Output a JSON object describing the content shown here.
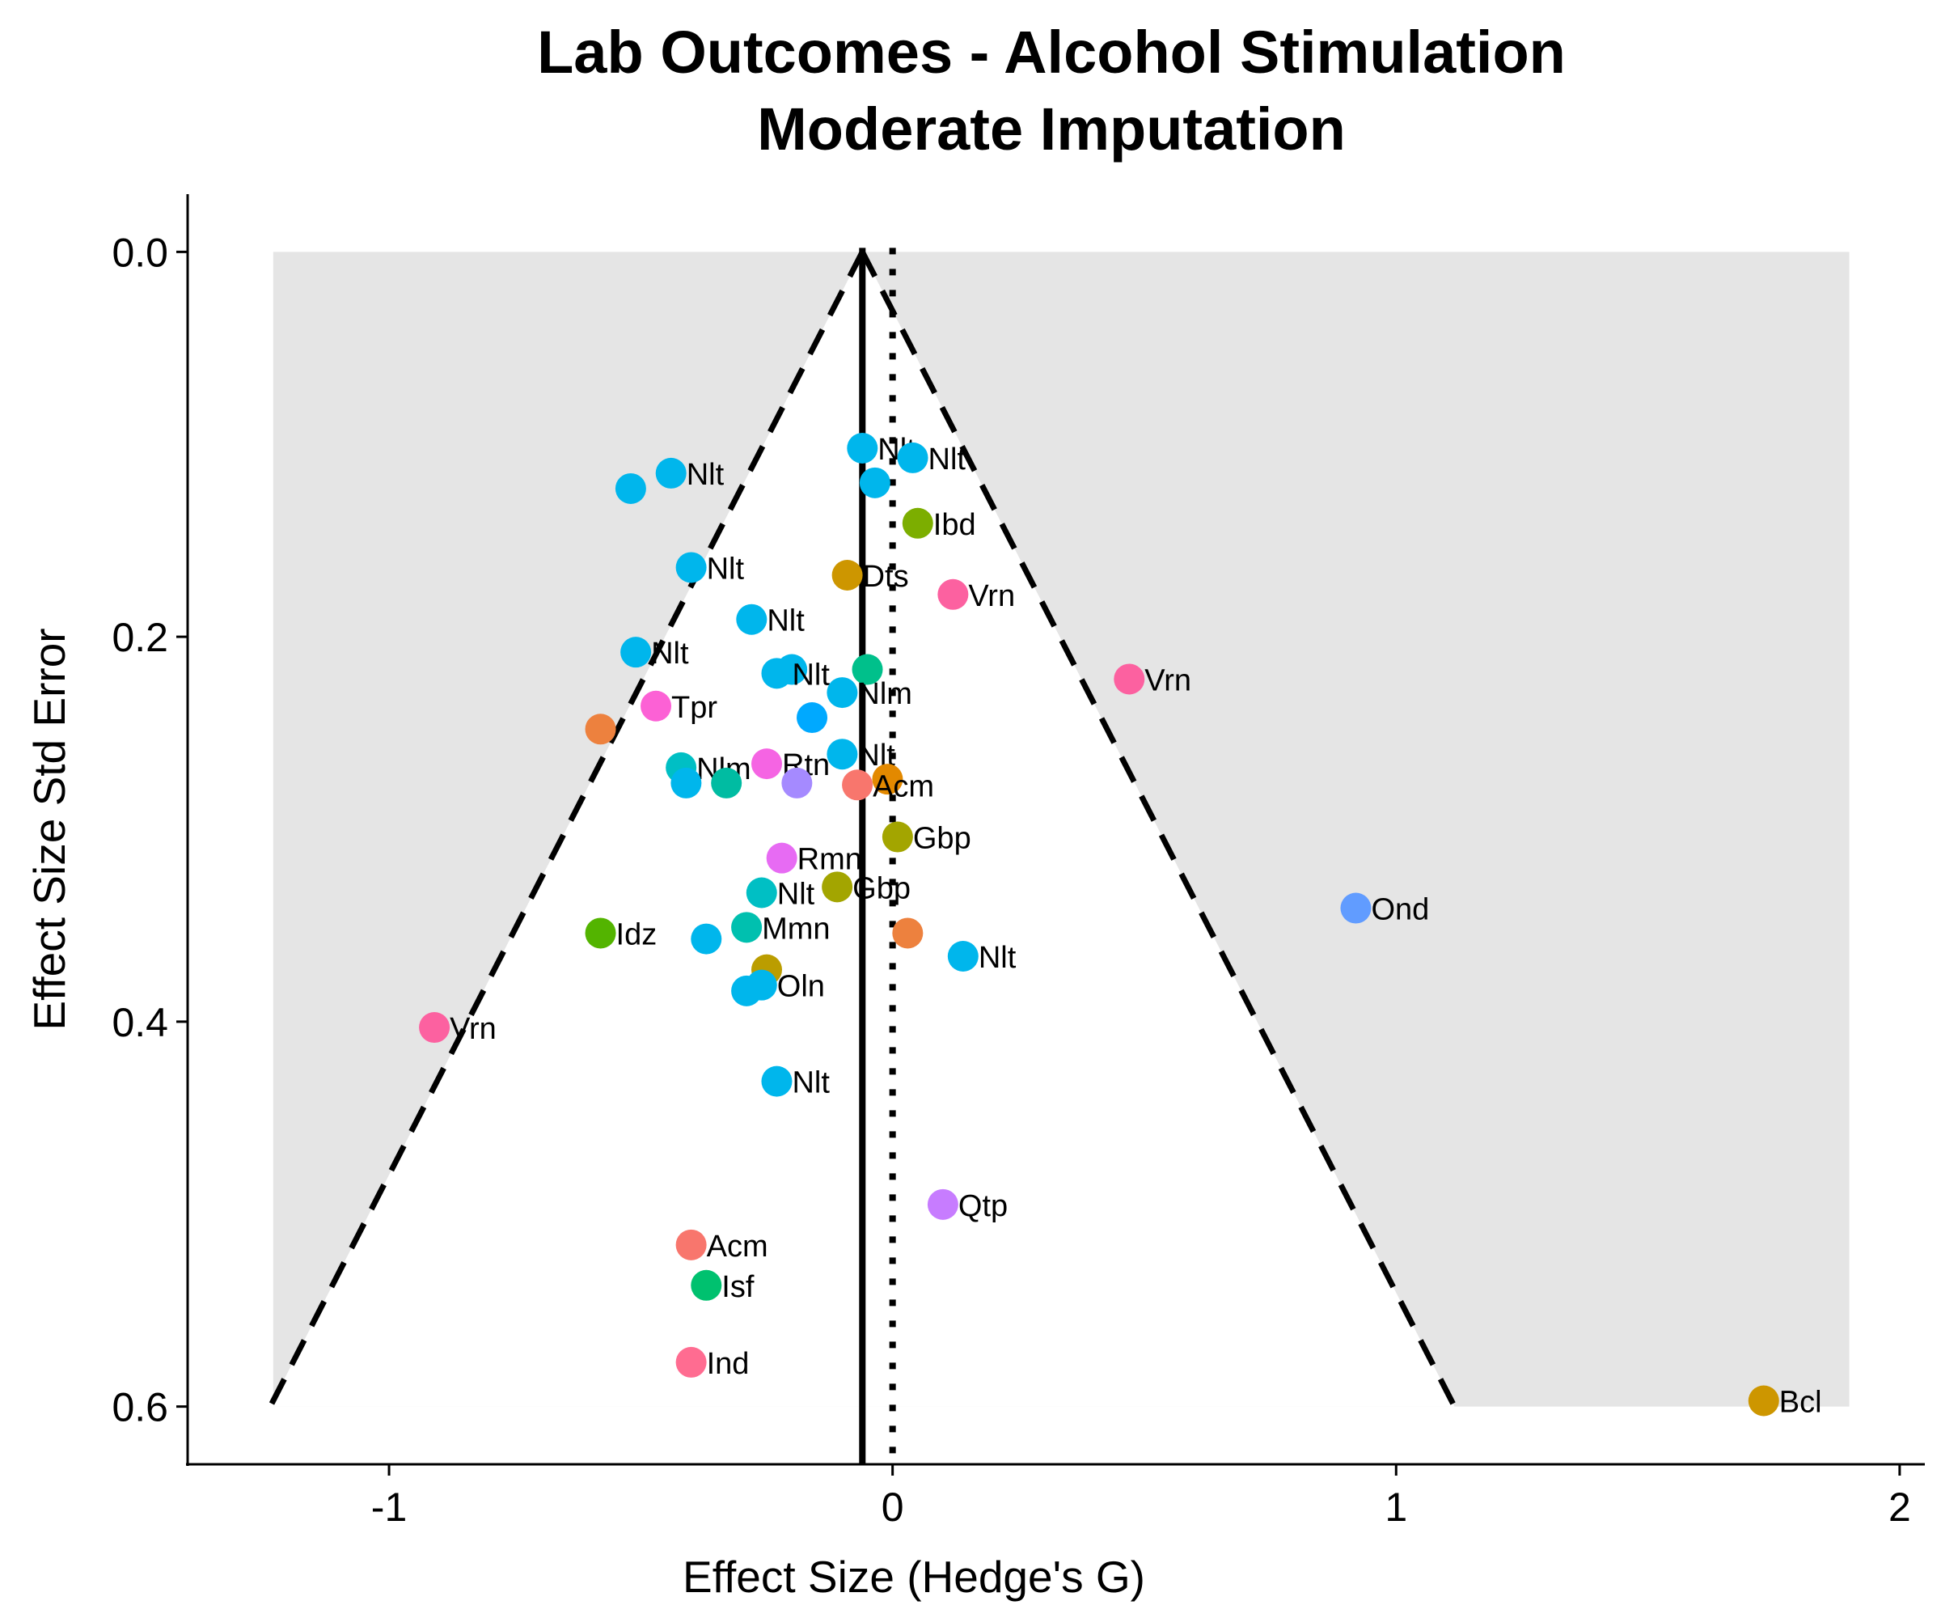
{
  "chart_data": {
    "type": "scatter",
    "title": "Lab Outcomes - Alcohol Stimulation",
    "subtitle": "Moderate Imputation",
    "xlabel": "Effect Size (Hedge's G)",
    "ylabel": "Effect Size Std Error",
    "xlim": [
      -1.4,
      2.05
    ],
    "ylim": [
      0.63,
      -0.03
    ],
    "y_reversed": true,
    "x_ticks": [
      -1,
      0,
      1,
      2
    ],
    "x_tick_labels": [
      "-1",
      "0",
      "1",
      "2"
    ],
    "y_ticks": [
      0.0,
      0.2,
      0.4,
      0.6
    ],
    "y_tick_labels": [
      "0.0",
      "0.2",
      "0.4",
      "0.6"
    ],
    "grid": false,
    "legend": "none",
    "pooled_estimate": -0.06,
    "null_line": 0,
    "funnel_max_se": 0.6,
    "shaded_region": {
      "x": [
        -1.23,
        1.9
      ],
      "y": [
        0,
        0.6
      ],
      "color": "#e5e5e5"
    },
    "line_colors": {
      "reference": "#000000"
    },
    "points": [
      {
        "x": -0.06,
        "y": 0.102,
        "label": "Nlt",
        "color": "#00b6ec"
      },
      {
        "x": 0.04,
        "y": 0.107,
        "label": "Nlt",
        "color": "#00b6ec"
      },
      {
        "x": -0.44,
        "y": 0.115,
        "label": "Nlt",
        "color": "#00b6ec"
      },
      {
        "x": -0.52,
        "y": 0.123,
        "label": "",
        "color": "#00b6ec"
      },
      {
        "x": -0.035,
        "y": 0.12,
        "label": "",
        "color": "#00b6ec"
      },
      {
        "x": 0.05,
        "y": 0.141,
        "label": "Ibd",
        "color": "#7cae00"
      },
      {
        "x": -0.4,
        "y": 0.164,
        "label": "Nlt",
        "color": "#00b6ec"
      },
      {
        "x": -0.09,
        "y": 0.168,
        "label": "Dts",
        "color": "#cd9600"
      },
      {
        "x": 0.12,
        "y": 0.178,
        "label": "Vrn",
        "color": "#fc61a0"
      },
      {
        "x": -0.28,
        "y": 0.191,
        "label": "Nlt",
        "color": "#00b6ec"
      },
      {
        "x": -0.51,
        "y": 0.208,
        "label": "Nlt",
        "color": "#00b6ec"
      },
      {
        "x": -0.2,
        "y": 0.217,
        "label": "",
        "color": "#00b6ec"
      },
      {
        "x": -0.23,
        "y": 0.219,
        "label": "Nlt",
        "color": "#00b6ec"
      },
      {
        "x": -0.05,
        "y": 0.217,
        "label": "",
        "color": "#00c08b"
      },
      {
        "x": 0.47,
        "y": 0.222,
        "label": "Vrn",
        "color": "#fc61a0"
      },
      {
        "x": -0.1,
        "y": 0.229,
        "label": "Nlm",
        "color": "#00b6ec"
      },
      {
        "x": -0.47,
        "y": 0.236,
        "label": "Tpr",
        "color": "#fc61d5"
      },
      {
        "x": -0.16,
        "y": 0.242,
        "label": "",
        "color": "#00a9ff"
      },
      {
        "x": -0.58,
        "y": 0.248,
        "label": "",
        "color": "#ed813e"
      },
      {
        "x": -0.1,
        "y": 0.261,
        "label": "Nlt",
        "color": "#00b6ec"
      },
      {
        "x": -0.42,
        "y": 0.268,
        "label": "Nlm",
        "color": "#00bfc4"
      },
      {
        "x": -0.25,
        "y": 0.266,
        "label": "Rtn",
        "color": "#f564e3"
      },
      {
        "x": -0.41,
        "y": 0.276,
        "label": "",
        "color": "#00b6ec"
      },
      {
        "x": -0.33,
        "y": 0.276,
        "label": "",
        "color": "#00bca2"
      },
      {
        "x": -0.19,
        "y": 0.276,
        "label": "",
        "color": "#a58aff"
      },
      {
        "x": -0.01,
        "y": 0.274,
        "label": "",
        "color": "#e38900"
      },
      {
        "x": -0.07,
        "y": 0.277,
        "label": "Acm",
        "color": "#f8766d"
      },
      {
        "x": 0.01,
        "y": 0.304,
        "label": "Gbp",
        "color": "#a3a500"
      },
      {
        "x": -0.22,
        "y": 0.315,
        "label": "Rmn",
        "color": "#e76bf3"
      },
      {
        "x": -0.26,
        "y": 0.333,
        "label": "Nlt",
        "color": "#00bfc4"
      },
      {
        "x": -0.11,
        "y": 0.33,
        "label": "Gbp",
        "color": "#a3a500"
      },
      {
        "x": 0.92,
        "y": 0.341,
        "label": "Ond",
        "color": "#619cff"
      },
      {
        "x": -0.58,
        "y": 0.354,
        "label": "Idz",
        "color": "#53b400"
      },
      {
        "x": -0.29,
        "y": 0.351,
        "label": "Mmn",
        "color": "#00c0af"
      },
      {
        "x": -0.37,
        "y": 0.357,
        "label": "",
        "color": "#00b6ec"
      },
      {
        "x": 0.03,
        "y": 0.354,
        "label": "",
        "color": "#ed813e"
      },
      {
        "x": 0.14,
        "y": 0.366,
        "label": "Nlt",
        "color": "#00b6ec"
      },
      {
        "x": -0.25,
        "y": 0.373,
        "label": "",
        "color": "#bb9d00"
      },
      {
        "x": -0.26,
        "y": 0.381,
        "label": "Oln",
        "color": "#00b6ec"
      },
      {
        "x": -0.29,
        "y": 0.384,
        "label": "",
        "color": "#00b6ec"
      },
      {
        "x": -0.91,
        "y": 0.403,
        "label": "Vrn",
        "color": "#fc61a0"
      },
      {
        "x": -0.23,
        "y": 0.431,
        "label": "Nlt",
        "color": "#00b6ec"
      },
      {
        "x": 0.1,
        "y": 0.495,
        "label": "Qtp",
        "color": "#c77cff"
      },
      {
        "x": -0.4,
        "y": 0.516,
        "label": "Acm",
        "color": "#f8766d"
      },
      {
        "x": -0.37,
        "y": 0.537,
        "label": "Isf",
        "color": "#00c16f"
      },
      {
        "x": -0.4,
        "y": 0.577,
        "label": "Ind",
        "color": "#ff6c91"
      },
      {
        "x": 1.73,
        "y": 0.597,
        "label": "Bcl",
        "color": "#cd9600"
      }
    ]
  }
}
